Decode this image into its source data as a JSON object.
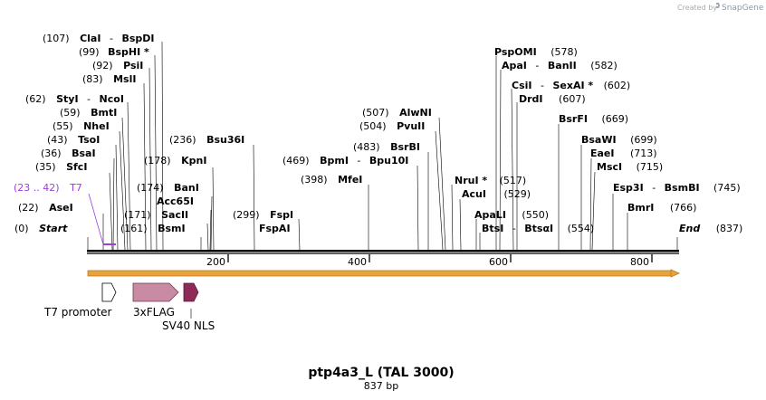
{
  "credit": "Created by",
  "brand": "SnapGene",
  "title": "ptp4a3_L (TAL 3000)",
  "subtitle": "837 bp",
  "sequence_length": 837,
  "ticks": [
    "200",
    "400",
    "600",
    "800"
  ],
  "colors": {
    "primer": "#9b3fd6",
    "orf": "#e8a33a",
    "flag": "#c98aa3",
    "nls": "#8e2a58"
  },
  "sites": {
    "start": {
      "pos": "(0)",
      "name": "Start"
    },
    "end": {
      "pos": "(837)",
      "name": "End"
    },
    "t7_primer": {
      "pos": "(23 .. 42)",
      "name": "T7"
    },
    "ase": {
      "pos": "(22)",
      "name": "AseI"
    },
    "sfc": {
      "pos": "(35)",
      "name": "SfcI"
    },
    "bsa": {
      "pos": "(36)",
      "name": "BsaI"
    },
    "tso": {
      "pos": "(43)",
      "name": "TsoI"
    },
    "nhe": {
      "pos": "(55)",
      "name": "NheI"
    },
    "bmt": {
      "pos": "(59)",
      "name": "BmtI"
    },
    "sty": {
      "pos": "(62)",
      "name": "StyI",
      "sep": "-",
      "name2": "NcoI"
    },
    "msl": {
      "pos": "(83)",
      "name": "MslI"
    },
    "psi": {
      "pos": "(92)",
      "name": "PsiI"
    },
    "bsphi": {
      "pos": "(99)",
      "name": "BspHI *"
    },
    "cla": {
      "pos": "(107)",
      "name": "ClaI",
      "sep": "-",
      "name2": "BspDI"
    },
    "bsm": {
      "pos": "(161)",
      "name": "BsmI"
    },
    "sac": {
      "pos": "(171)",
      "name": "SacII"
    },
    "acc": {
      "name": "Acc65I"
    },
    "ban": {
      "pos": "(174)",
      "name": "BanI"
    },
    "kpn": {
      "pos": "(178)",
      "name": "KpnI"
    },
    "bsu": {
      "pos": "(236)",
      "name": "Bsu36I"
    },
    "fsp": {
      "pos": "(299)",
      "name": "FspI"
    },
    "fspai": {
      "name": "FspAI"
    },
    "mfe": {
      "pos": "(398)",
      "name": "MfeI"
    },
    "bpm": {
      "pos": "(469)",
      "name": "BpmI",
      "sep": "-",
      "name2": "Bpu10I"
    },
    "bsrbi": {
      "pos": "(483)",
      "name": "BsrBI"
    },
    "pvu": {
      "pos": "(504)",
      "name": "PvuII"
    },
    "alw": {
      "pos": "(507)",
      "name": "AlwNI"
    },
    "nru": {
      "name": "NruI *",
      "pos": "(517)"
    },
    "acu": {
      "name": "AcuI",
      "pos": "(529)"
    },
    "apali": {
      "name": "ApaLI",
      "pos": "(550)"
    },
    "bts": {
      "name": "BtsI",
      "sep": "-",
      "name2": "BtsαI",
      "pos": "(554)"
    },
    "pspomi": {
      "name": "PspOMI",
      "pos": "(578)"
    },
    "apa": {
      "name": "ApaI",
      "sep": "-",
      "name2": "BanII",
      "pos": "(582)"
    },
    "csi": {
      "name": "CsiI",
      "sep": "-",
      "name2": "SexAI *",
      "pos": "(602)"
    },
    "drd": {
      "name": "DrdI",
      "pos": "(607)"
    },
    "bsrfi": {
      "name": "BsrFI",
      "pos": "(669)"
    },
    "bsawi": {
      "name": "BsaWI",
      "pos": "(699)"
    },
    "eae": {
      "name": "EaeI",
      "pos": "(713)"
    },
    "msc": {
      "name": "MscI",
      "pos": "(715)"
    },
    "esp": {
      "name": "Esp3I",
      "sep": "-",
      "name2": "BsmBI",
      "pos": "(745)"
    },
    "bmr": {
      "name": "BmrI",
      "pos": "(766)"
    }
  },
  "features": {
    "t7_promoter": "T7 promoter",
    "flag": "3xFLAG",
    "nls": "SV40 NLS"
  }
}
